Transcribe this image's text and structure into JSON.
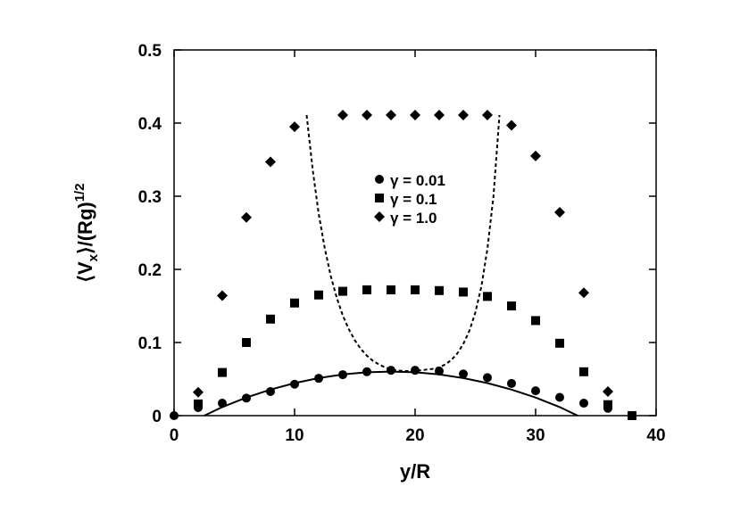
{
  "chart_data": {
    "type": "scatter",
    "xlabel": "y/R",
    "ylabel": "⟨Vx⟩/(Rg)^1/2",
    "xlim": [
      0,
      40
    ],
    "ylim": [
      0,
      0.5
    ],
    "xticks": [
      "0",
      "10",
      "20",
      "30",
      "40"
    ],
    "yticks": [
      "0",
      "0.1",
      "0.2",
      "0.3",
      "0.4",
      "0.5"
    ],
    "grid": false,
    "legend_position": "center",
    "series": [
      {
        "name": "γ = 0.01",
        "marker": "circle",
        "x": [
          0,
          2,
          4,
          6,
          8,
          10,
          12,
          14,
          16,
          18,
          20,
          22,
          24,
          26,
          28,
          30,
          32,
          34,
          36,
          38
        ],
        "y": [
          0.0,
          0.011,
          0.017,
          0.024,
          0.033,
          0.043,
          0.051,
          0.056,
          0.06,
          0.062,
          0.062,
          0.061,
          0.057,
          0.052,
          0.044,
          0.034,
          0.025,
          0.017,
          0.01,
          0.0
        ]
      },
      {
        "name": "γ = 0.1",
        "marker": "square",
        "x": [
          2,
          4,
          6,
          8,
          10,
          12,
          14,
          16,
          18,
          20,
          22,
          24,
          26,
          28,
          30,
          32,
          34,
          36,
          38
        ],
        "y": [
          0.016,
          0.059,
          0.1,
          0.132,
          0.154,
          0.165,
          0.17,
          0.172,
          0.172,
          0.172,
          0.171,
          0.169,
          0.163,
          0.15,
          0.13,
          0.099,
          0.06,
          0.015,
          0.0
        ]
      },
      {
        "name": "γ = 1.0",
        "marker": "diamond",
        "x": [
          2,
          4,
          6,
          8,
          10,
          14,
          16,
          18,
          20,
          22,
          24,
          26,
          28,
          30,
          32,
          34,
          36
        ],
        "y": [
          0.032,
          0.164,
          0.271,
          0.347,
          0.395,
          0.411,
          0.411,
          0.411,
          0.411,
          0.411,
          0.411,
          0.411,
          0.397,
          0.355,
          0.278,
          0.168,
          0.033
        ]
      }
    ],
    "fit_curves": [
      {
        "style": "solid",
        "x": [
          2.5,
          4,
          6,
          8,
          10,
          12,
          14,
          16,
          18,
          20,
          22,
          24,
          26,
          28,
          30,
          32,
          34,
          35.5
        ],
        "y": [
          0.0,
          0.0117,
          0.0247,
          0.0356,
          0.0445,
          0.0514,
          0.0563,
          0.0593,
          0.0603,
          0.0593,
          0.0563,
          0.0514,
          0.0445,
          0.0356,
          0.0247,
          0.0117,
          -0.004,
          -0.008
        ]
      },
      {
        "style": "dotted",
        "x": [
          11.0,
          11.5,
          12.0,
          12.5,
          13.0,
          13.5,
          14.0,
          14.5,
          15.0,
          15.5,
          16.0,
          16.5,
          17.0,
          17.5,
          18.0,
          18.5,
          19.0,
          19.5,
          20.0,
          20.5,
          21.0,
          21.5,
          22.0,
          22.5,
          23.0,
          23.5,
          24.0,
          24.5,
          25.0,
          25.5,
          26.0,
          26.5,
          27.0
        ],
        "y": [
          0.411,
          0.336,
          0.276,
          0.229,
          0.191,
          0.161,
          0.137,
          0.118,
          0.103,
          0.091,
          0.082,
          0.075,
          0.07,
          0.066,
          0.063,
          0.062,
          0.061,
          0.061,
          0.062,
          0.062,
          0.063,
          0.064,
          0.066,
          0.07,
          0.076,
          0.085,
          0.098,
          0.116,
          0.141,
          0.177,
          0.228,
          0.3,
          0.411
        ]
      }
    ]
  }
}
